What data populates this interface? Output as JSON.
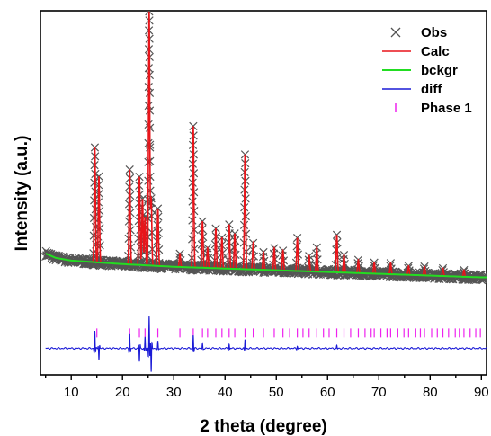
{
  "chart_data": {
    "type": "line",
    "xlabel": "2 theta (degree)",
    "ylabel": "Intensity (a.u.)",
    "xlim": [
      4,
      91
    ],
    "xticks": [
      10,
      20,
      30,
      40,
      50,
      60,
      70,
      80,
      90
    ],
    "yticks_shown": false,
    "ylim": [
      -350,
      1300
    ],
    "grid": false,
    "legend_position": "top-right",
    "colors": {
      "obs": "#555555",
      "calc": "#e8141a",
      "bckgr": "#22dd22",
      "diff": "#1a1ad6",
      "phase": "#ee22ee",
      "axis": "#000000"
    },
    "series": [
      {
        "name": "Obs",
        "kind": "marker-x"
      },
      {
        "name": "Calc",
        "kind": "line"
      },
      {
        "name": "bckgr",
        "kind": "line"
      },
      {
        "name": "diff",
        "kind": "line"
      },
      {
        "name": "Phase 1",
        "kind": "tick-marks"
      }
    ],
    "background": {
      "x": [
        5,
        7,
        10,
        15,
        20,
        30,
        40,
        50,
        60,
        70,
        80,
        90
      ],
      "y": [
        200,
        180,
        168,
        160,
        152,
        140,
        132,
        124,
        116,
        108,
        100,
        92
      ]
    },
    "peaks": [
      {
        "x": 14.6,
        "height": 520,
        "w": 0.12
      },
      {
        "x": 15.4,
        "height": 390,
        "w": 0.12
      },
      {
        "x": 21.4,
        "height": 430,
        "w": 0.12
      },
      {
        "x": 23.3,
        "height": 400,
        "w": 0.12
      },
      {
        "x": 23.9,
        "height": 300,
        "w": 0.12
      },
      {
        "x": 24.4,
        "height": 220,
        "w": 0.12
      },
      {
        "x": 25.2,
        "height": 1150,
        "w": 0.12
      },
      {
        "x": 25.6,
        "height": 300,
        "w": 0.12
      },
      {
        "x": 26.9,
        "height": 260,
        "w": 0.12
      },
      {
        "x": 31.2,
        "height": 60,
        "w": 0.12
      },
      {
        "x": 33.8,
        "height": 640,
        "w": 0.12
      },
      {
        "x": 35.6,
        "height": 210,
        "w": 0.12
      },
      {
        "x": 36.6,
        "height": 90,
        "w": 0.12
      },
      {
        "x": 38.2,
        "height": 180,
        "w": 0.12
      },
      {
        "x": 39.4,
        "height": 140,
        "w": 0.12
      },
      {
        "x": 40.8,
        "height": 200,
        "w": 0.12
      },
      {
        "x": 41.9,
        "height": 160,
        "w": 0.12
      },
      {
        "x": 43.9,
        "height": 520,
        "w": 0.12
      },
      {
        "x": 45.5,
        "height": 120,
        "w": 0.12
      },
      {
        "x": 47.5,
        "height": 80,
        "w": 0.12
      },
      {
        "x": 49.6,
        "height": 100,
        "w": 0.12
      },
      {
        "x": 51.3,
        "height": 90,
        "w": 0.12
      },
      {
        "x": 54.1,
        "height": 150,
        "w": 0.12
      },
      {
        "x": 56.4,
        "height": 70,
        "w": 0.12
      },
      {
        "x": 57.9,
        "height": 110,
        "w": 0.12
      },
      {
        "x": 61.8,
        "height": 170,
        "w": 0.12
      },
      {
        "x": 63.2,
        "height": 80,
        "w": 0.12
      },
      {
        "x": 66.0,
        "height": 60,
        "w": 0.12
      },
      {
        "x": 69.1,
        "height": 50,
        "w": 0.12
      },
      {
        "x": 72.3,
        "height": 50,
        "w": 0.12
      },
      {
        "x": 75.8,
        "height": 40,
        "w": 0.12
      },
      {
        "x": 78.9,
        "height": 40,
        "w": 0.12
      },
      {
        "x": 82.5,
        "height": 35,
        "w": 0.12
      },
      {
        "x": 86.6,
        "height": 30,
        "w": 0.12
      }
    ],
    "diff": {
      "offset": -230,
      "features": [
        {
          "x": 14.6,
          "amp": 80
        },
        {
          "x": 15.4,
          "amp": -50
        },
        {
          "x": 21.4,
          "amp": 70
        },
        {
          "x": 23.3,
          "amp": -60
        },
        {
          "x": 24.4,
          "amp": 50
        },
        {
          "x": 25.2,
          "amp": 150
        },
        {
          "x": 25.6,
          "amp": -110
        },
        {
          "x": 26.9,
          "amp": 30
        },
        {
          "x": 33.8,
          "amp": 60
        },
        {
          "x": 35.6,
          "amp": 20
        },
        {
          "x": 40.8,
          "amp": 20
        },
        {
          "x": 43.9,
          "amp": 40
        },
        {
          "x": 54.1,
          "amp": 12
        },
        {
          "x": 61.8,
          "amp": 12
        }
      ]
    },
    "phase_tick_y": -160,
    "phase_ticks": [
      15.0,
      21.4,
      23.3,
      24.4,
      25.2,
      26.9,
      31.2,
      33.8,
      35.6,
      36.6,
      38.2,
      39.4,
      40.8,
      41.9,
      43.9,
      45.5,
      47.5,
      49.6,
      51.3,
      52.6,
      54.1,
      55.2,
      56.4,
      57.9,
      59.2,
      60.3,
      61.8,
      63.2,
      64.5,
      66.0,
      67.3,
      68.5,
      69.1,
      70.4,
      71.6,
      72.3,
      73.7,
      74.9,
      75.8,
      77.2,
      78.1,
      78.9,
      80.3,
      81.4,
      82.5,
      83.6,
      84.9,
      85.7,
      86.6,
      87.8,
      88.9,
      89.8
    ]
  }
}
